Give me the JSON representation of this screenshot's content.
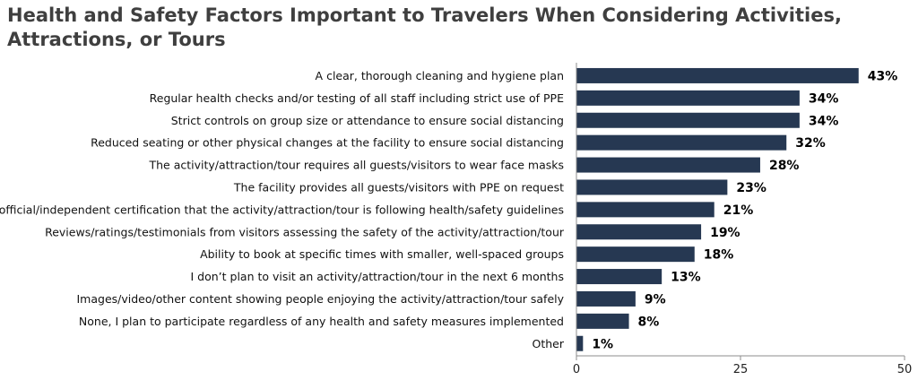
{
  "chart_data": {
    "type": "bar",
    "orientation": "horizontal",
    "title": "Health and Safety Factors Important to Travelers When Considering Activities, Attractions, or Tours",
    "categories": [
      "A clear, thorough cleaning and hygiene plan",
      "Regular health checks and/or testing of all staff including strict use of PPE",
      "Strict controls on group size or attendance to ensure social distancing",
      "Reduced seating or other physical changes at the facility to ensure social distancing",
      "The activity/attraction/tour requires all guests/visitors to wear face masks",
      "The facility provides all guests/visitors with PPE on request",
      "An official/independent certification that the activity/attraction/tour is following health/safety guidelines",
      "Reviews/ratings/testimonials from visitors assessing the safety of the activity/attraction/tour",
      "Ability to book at specific times with smaller, well-spaced groups",
      "I don’t plan to visit an activity/attraction/tour in the next 6 months",
      "Images/video/other content showing people enjoying the activity/attraction/tour safely",
      "None, I plan to participate regardless of any health and safety measures implemented",
      "Other"
    ],
    "values": [
      43,
      34,
      34,
      32,
      28,
      23,
      21,
      19,
      18,
      13,
      9,
      8,
      1
    ],
    "data_labels": [
      "43%",
      "34%",
      "34%",
      "32%",
      "28%",
      "23%",
      "21%",
      "19%",
      "18%",
      "13%",
      "9%",
      "8%",
      "1%"
    ],
    "xlim": [
      0,
      50
    ],
    "xticks": [
      0,
      25,
      50
    ],
    "xtick_labels": [
      "0",
      "25",
      "50"
    ],
    "bar_color": "#263852",
    "grid": false,
    "legend": "none"
  }
}
